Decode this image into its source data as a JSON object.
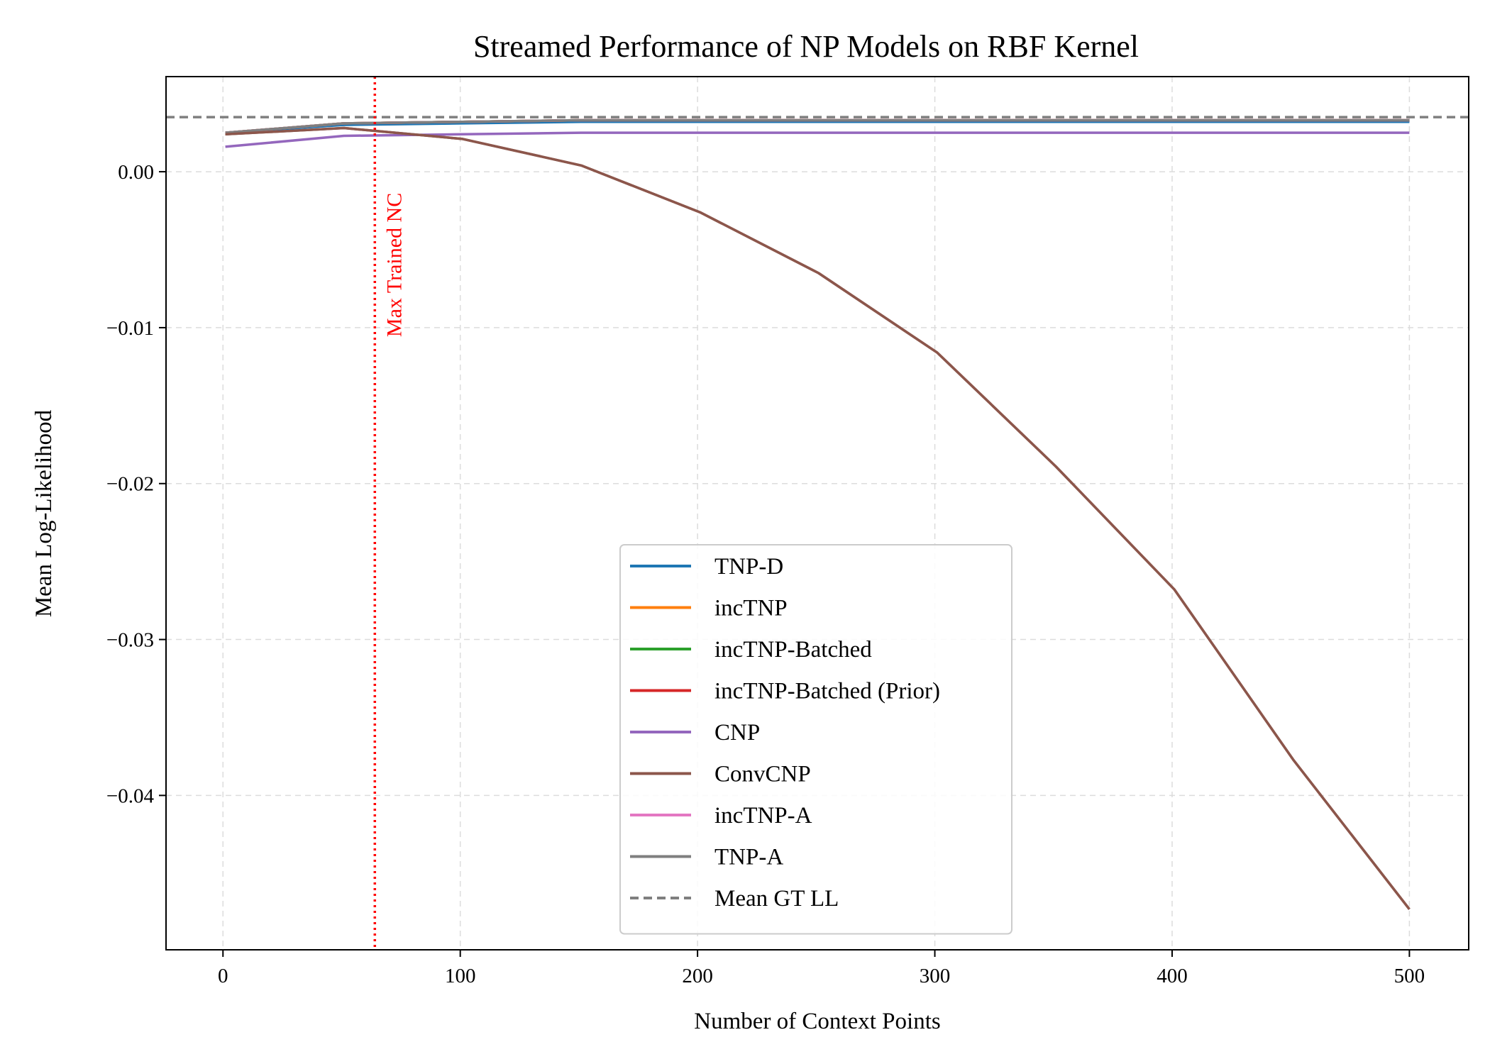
{
  "chart_data": {
    "type": "line",
    "title": "Streamed Performance of NP Models on RBF Kernel",
    "xlabel": "Number of Context Points",
    "ylabel": "Mean Log-Likelihood",
    "xlim": [
      -24,
      525
    ],
    "ylim": [
      -0.0499,
      0.0061
    ],
    "xticks": [
      0,
      100,
      200,
      300,
      400,
      500
    ],
    "xtick_labels": [
      "0",
      "100",
      "200",
      "300",
      "400",
      "500"
    ],
    "yticks": [
      0.0,
      -0.01,
      -0.02,
      -0.03,
      -0.04
    ],
    "ytick_labels": [
      "0.00",
      "−0.01",
      "−0.02",
      "−0.03",
      "−0.04"
    ],
    "grid": true,
    "legend_position": "lower center",
    "x": [
      1,
      51,
      101,
      151,
      201,
      251,
      301,
      351,
      401,
      451,
      500
    ],
    "series": [
      {
        "name": "TNP-D",
        "color": "#1f77b4",
        "style": "solid",
        "values": [
          0.0025,
          0.003,
          0.0031,
          0.0032,
          0.0032,
          0.0032,
          0.0032,
          0.0032,
          0.0032,
          0.0032,
          0.0032
        ]
      },
      {
        "name": "incTNP",
        "color": "#ff7f0e",
        "style": "solid",
        "values": [
          0.0025,
          0.0031,
          0.0032,
          0.0033,
          0.0033,
          0.0033,
          0.0033,
          0.0033,
          0.0033,
          0.0033,
          0.0033
        ]
      },
      {
        "name": "incTNP-Batched",
        "color": "#2ca02c",
        "style": "solid",
        "values": [
          0.0025,
          0.0031,
          0.0032,
          0.0033,
          0.0033,
          0.0033,
          0.0033,
          0.0033,
          0.0033,
          0.0033,
          0.0033
        ]
      },
      {
        "name": "incTNP-Batched (Prior)",
        "color": "#d62728",
        "style": "solid",
        "values": [
          0.0025,
          0.0031,
          0.0032,
          0.0033,
          0.0033,
          0.0033,
          0.0033,
          0.0033,
          0.0033,
          0.0033,
          0.0033
        ]
      },
      {
        "name": "CNP",
        "color": "#9467bd",
        "style": "solid",
        "values": [
          0.0016,
          0.0023,
          0.0024,
          0.0025,
          0.0025,
          0.0025,
          0.0025,
          0.0025,
          0.0025,
          0.0025,
          0.0025
        ]
      },
      {
        "name": "ConvCNP",
        "color": "#8c564b",
        "style": "solid",
        "values": [
          0.0024,
          0.0028,
          0.0021,
          0.0004,
          -0.0026,
          -0.0065,
          -0.0116,
          -0.0189,
          -0.0268,
          -0.0377,
          -0.0473
        ]
      },
      {
        "name": "incTNP-A",
        "color": "#e377c2",
        "style": "solid",
        "values": [
          0.0025,
          0.0031,
          0.0032,
          0.0033,
          0.0033,
          0.0033,
          0.0033,
          0.0033,
          0.0033,
          0.0033,
          0.0033
        ]
      },
      {
        "name": "TNP-A",
        "color": "#7f7f7f",
        "style": "solid",
        "values": [
          0.0025,
          0.0031,
          0.0032,
          0.0033,
          0.0033,
          0.0033,
          0.0033,
          0.0033,
          0.0033,
          0.0033,
          0.0033
        ]
      }
    ],
    "hline": {
      "name": "Mean GT LL",
      "y": 0.0035,
      "color": "#7f7f7f",
      "style": "dashed"
    },
    "vline": {
      "x": 64,
      "color": "#ff0000",
      "style": "dotted",
      "label": "Max Trained NC"
    }
  }
}
